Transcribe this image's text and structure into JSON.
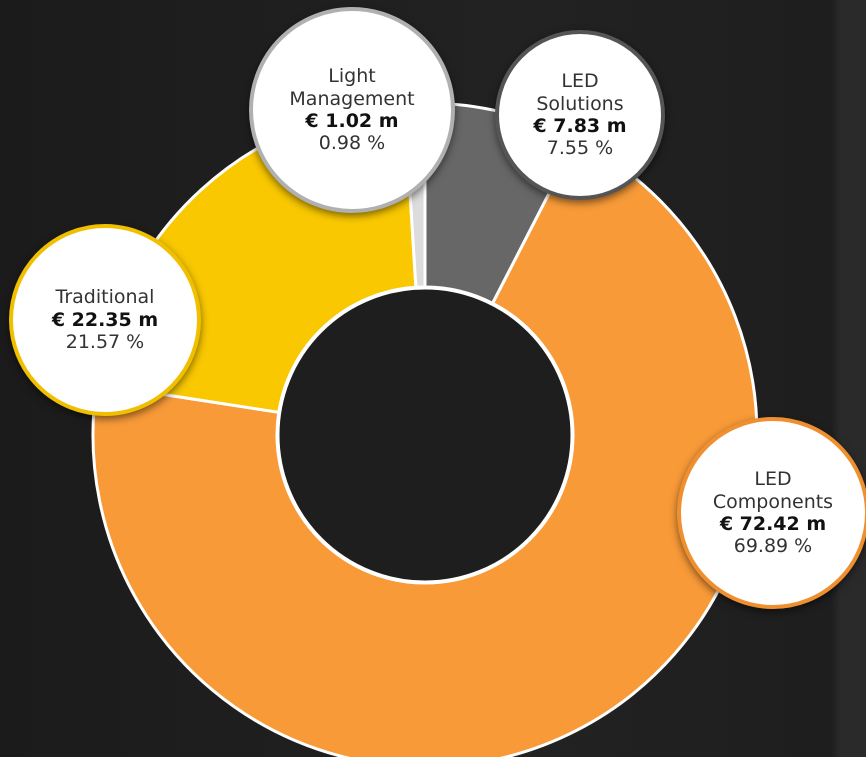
{
  "chart_data": {
    "type": "donut",
    "categories": [
      "LED Solutions",
      "LED Components",
      "Traditional",
      "Light Management"
    ],
    "values": [
      7.55,
      69.89,
      21.57,
      0.98
    ],
    "value_labels": [
      "7.55 %",
      "69.89 %",
      "21.57 %",
      "0.98 %"
    ],
    "amount_labels": [
      "€ 7.83 m",
      "€ 72.42 m",
      "€ 22.35 m",
      "€ 1.02 m"
    ],
    "colors": [
      "#676767",
      "#f89a38",
      "#f9c800",
      "#dcdcdc"
    ],
    "label_border_colors": [
      "#555555",
      "#f08f30",
      "#f0c000",
      "#b0b0b0"
    ]
  }
}
